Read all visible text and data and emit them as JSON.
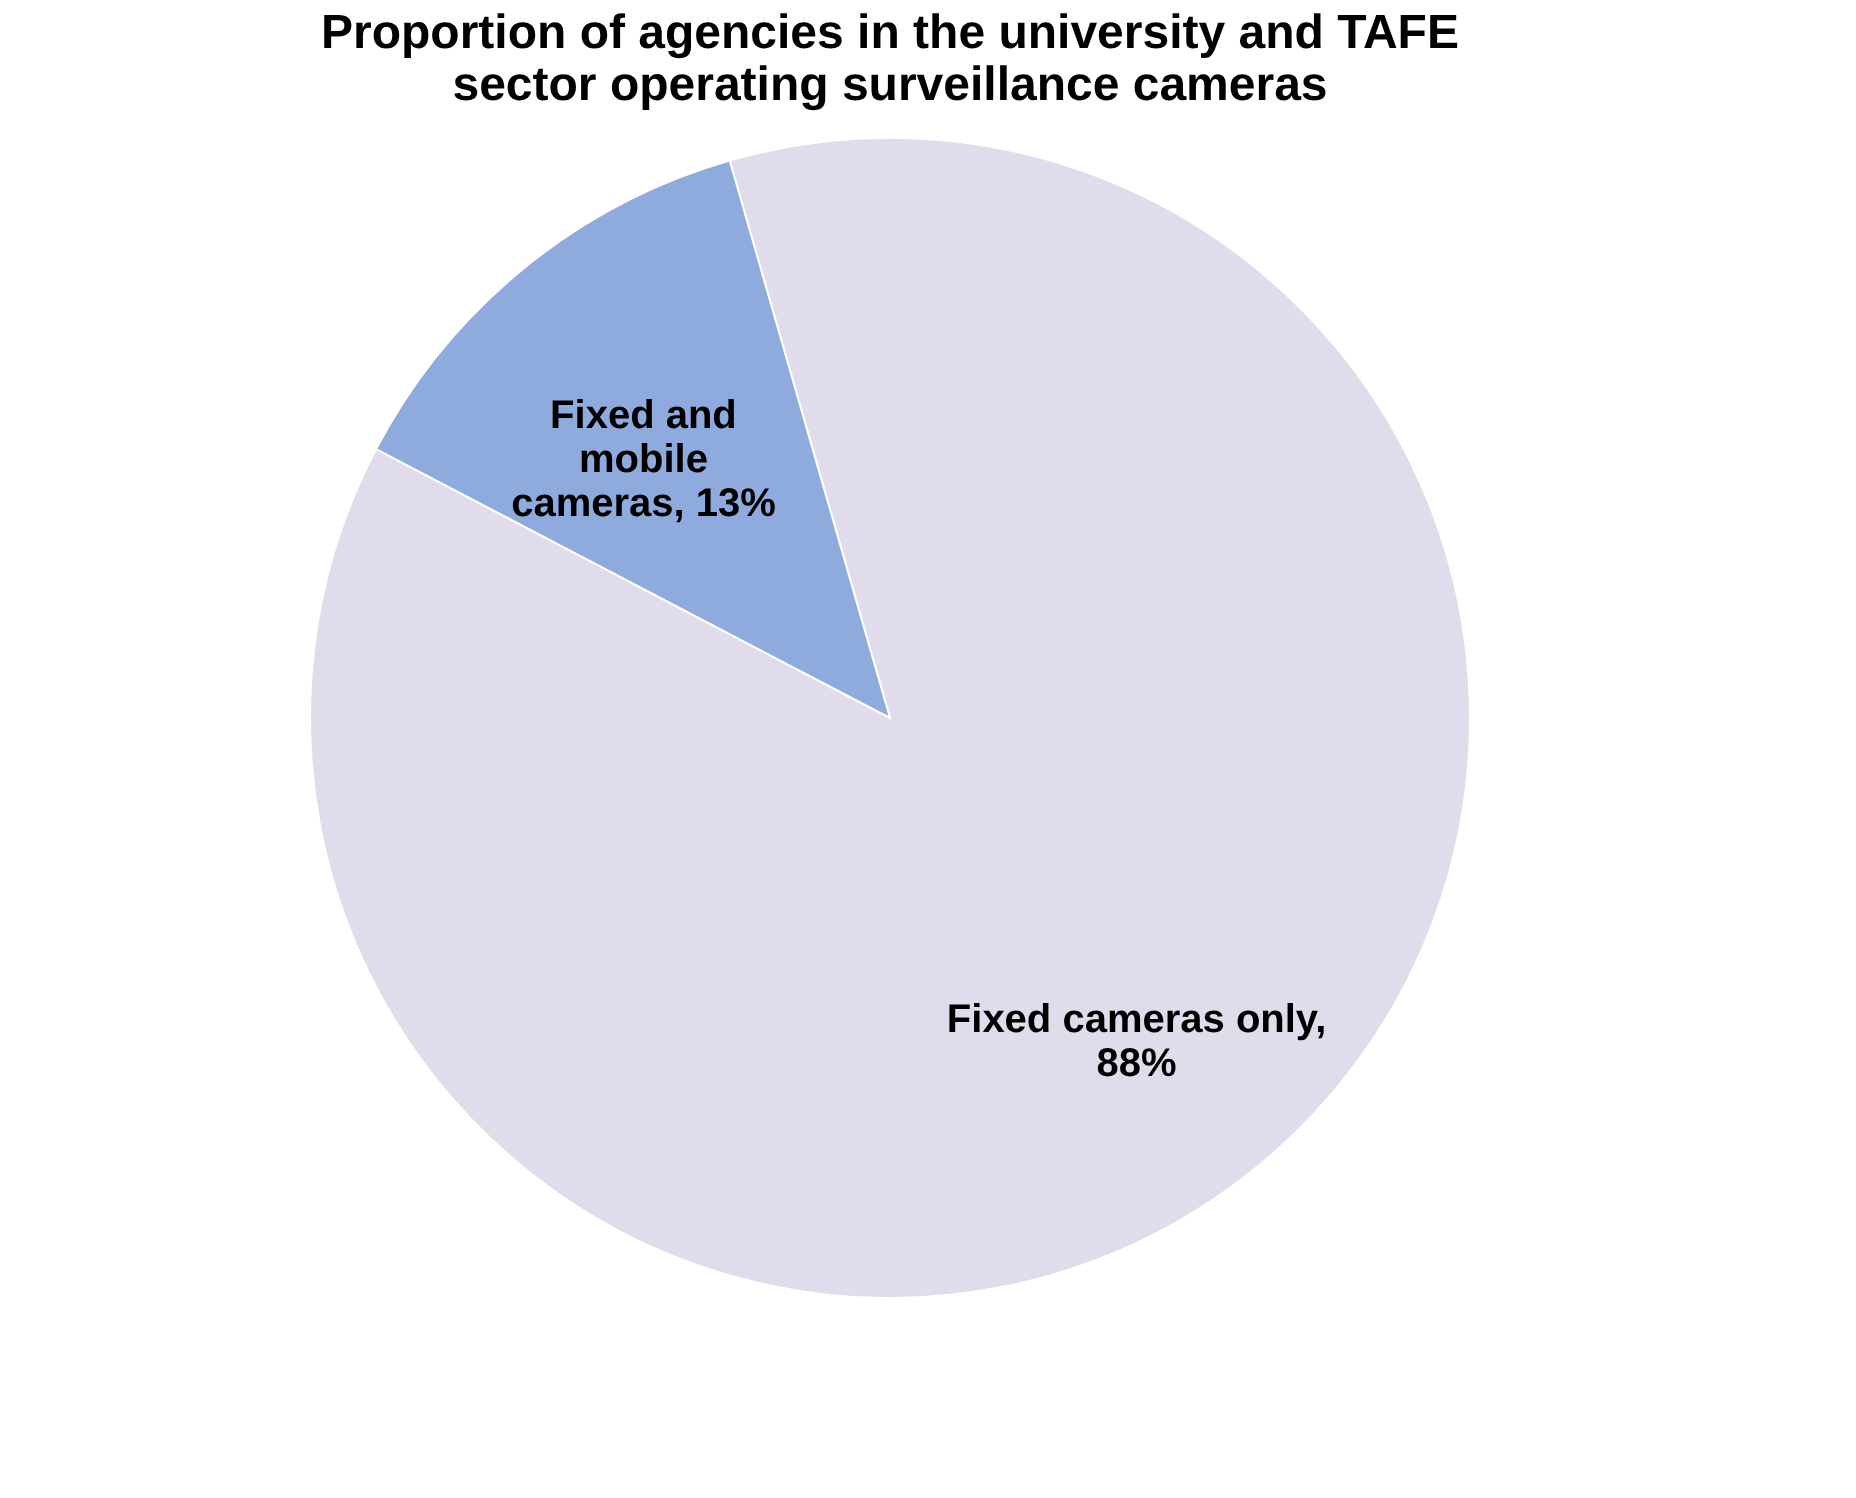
{
  "chart_data": {
    "type": "pie",
    "title": "Proportion of agencies in the university and TAFE sector operating surveillance cameras",
    "categories": [
      "Fixed cameras only, 88%",
      "Fixed and mobile cameras, 13%"
    ],
    "values": [
      88,
      13
    ],
    "colors": [
      "#e0dcec",
      "#8faadc"
    ],
    "legend": false
  }
}
